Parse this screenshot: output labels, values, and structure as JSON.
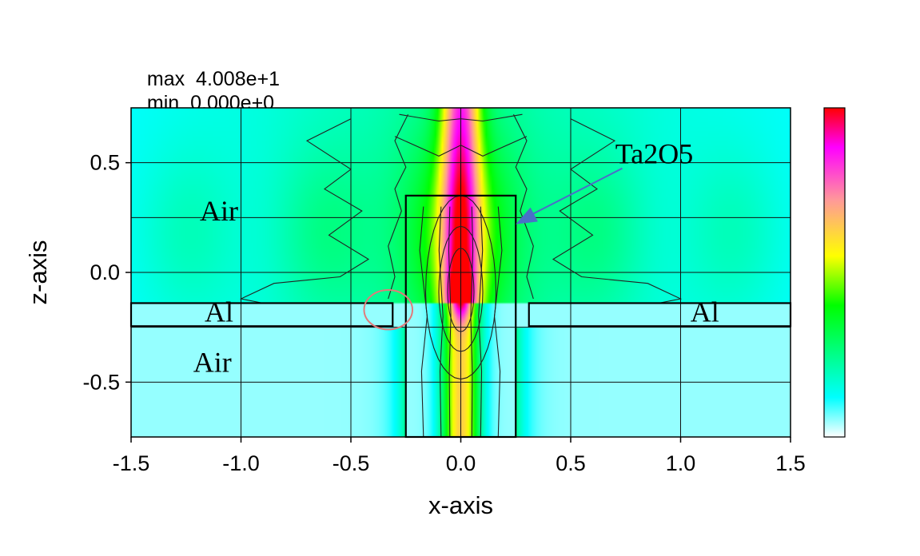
{
  "chart_data": {
    "type": "heatmap",
    "title": "",
    "stats": {
      "max_label": "max",
      "max_value": "4.008e+1",
      "min_label": "min",
      "min_value": "0.000e+0"
    },
    "xlabel": "x-axis",
    "ylabel": "z-axis",
    "xlim": [
      -1.5,
      1.5
    ],
    "ylim": [
      -0.75,
      0.75
    ],
    "x_ticks": [
      -1.5,
      -1.0,
      -0.5,
      0.0,
      0.5,
      1.0,
      1.5
    ],
    "x_tick_labels": [
      "-1.5",
      "-1.0",
      "-0.5",
      "0.0",
      "0.5",
      "1.0",
      "1.5"
    ],
    "y_ticks": [
      0.5,
      0.0,
      -0.5
    ],
    "y_tick_labels": [
      "0.5",
      "0.0",
      "-0.5"
    ],
    "grid": true,
    "value_range": [
      0,
      40.08
    ],
    "colorbar": {
      "placement": "right",
      "colors": [
        "#ffffff",
        "#00ffff",
        "#00ff00",
        "#ffff00",
        "#ff9999",
        "#ff00ff",
        "#ff0000"
      ]
    },
    "regions": [
      {
        "label": "Air",
        "x": -1.1,
        "z": 0.28
      },
      {
        "label": "Al",
        "x": -1.1,
        "z": -0.18
      },
      {
        "label": "Air",
        "x": -1.13,
        "z": -0.41
      },
      {
        "label": "Al",
        "x": 1.11,
        "z": -0.18
      }
    ],
    "annotations": [
      {
        "label": "Ta2O5",
        "text_x": 0.88,
        "text_z": 0.54,
        "arrow_to_x": 0.25,
        "arrow_to_z": 0.22
      }
    ],
    "structures": [
      {
        "name": "Al left",
        "x0": -1.5,
        "x1": -0.31,
        "z0": -0.245,
        "z1": -0.14
      },
      {
        "name": "Al right",
        "x0": 0.31,
        "x1": 1.5,
        "z0": -0.245,
        "z1": -0.14
      },
      {
        "name": "Ta2O5 waveguide",
        "x0": -0.25,
        "x1": 0.25,
        "z0": -0.75,
        "z1": 0.35
      }
    ],
    "marker": {
      "shape": "ellipse",
      "x": -0.33,
      "z": -0.17,
      "rx": 0.11,
      "rz": 0.09,
      "color": "#e07b7b"
    }
  }
}
